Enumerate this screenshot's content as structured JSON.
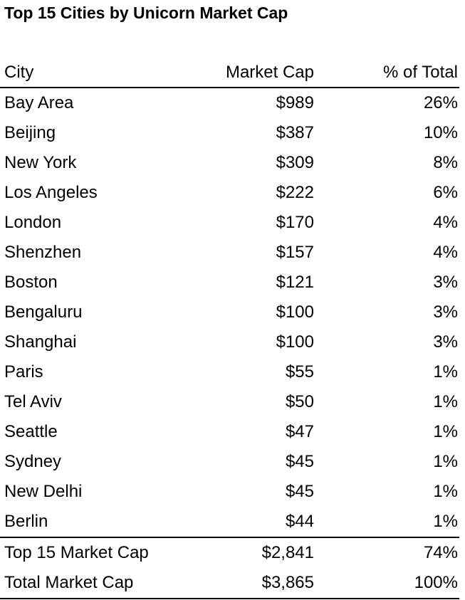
{
  "title": "Top 15 Cities by Unicorn Market Cap",
  "table": {
    "headers": [
      "City",
      "Market Cap",
      "% of Total"
    ],
    "rows": [
      [
        "Bay Area",
        "$989",
        "26%"
      ],
      [
        "Beijing",
        "$387",
        "10%"
      ],
      [
        "New York",
        "$309",
        "8%"
      ],
      [
        "Los Angeles",
        "$222",
        "6%"
      ],
      [
        "London",
        "$170",
        "4%"
      ],
      [
        "Shenzhen",
        "$157",
        "4%"
      ],
      [
        "Boston",
        "$121",
        "3%"
      ],
      [
        "Bengaluru",
        "$100",
        "3%"
      ],
      [
        "Shanghai",
        "$100",
        "3%"
      ],
      [
        "Paris",
        "$55",
        "1%"
      ],
      [
        "Tel Aviv",
        "$50",
        "1%"
      ],
      [
        "Seattle",
        "$47",
        "1%"
      ],
      [
        "Sydney",
        "$45",
        "1%"
      ],
      [
        "New Delhi",
        "$45",
        "1%"
      ],
      [
        "Berlin",
        "$44",
        "1%"
      ]
    ],
    "totals": [
      [
        "Top 15 Market Cap",
        "$2,841",
        "74%"
      ],
      [
        "Total Market Cap",
        "$3,865",
        "100%"
      ]
    ]
  }
}
